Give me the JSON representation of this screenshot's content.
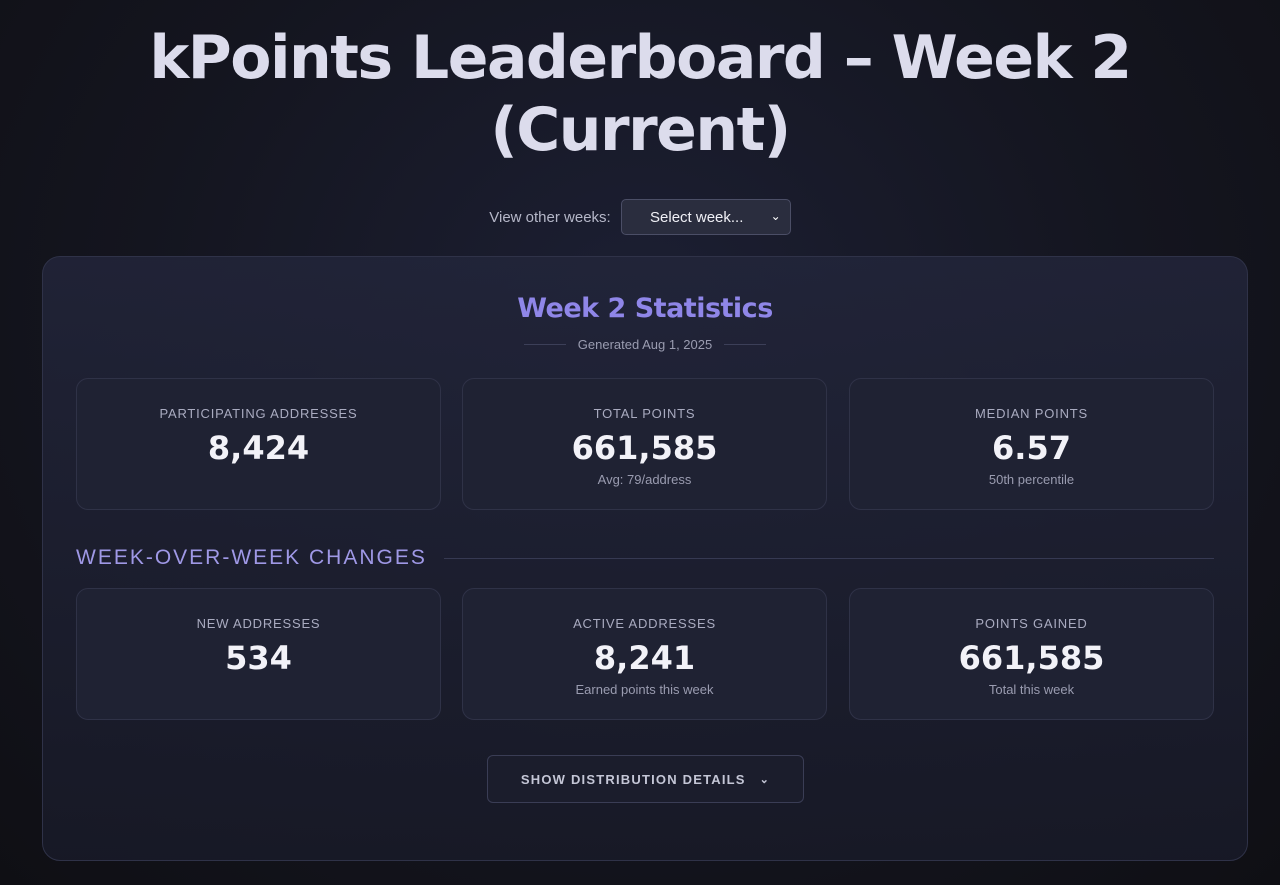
{
  "header": {
    "title_line1": "kPoints Leaderboard – Week 2",
    "title_line2": "(Current)"
  },
  "week_selector": {
    "label": "View other weeks:",
    "selected": "Select week..."
  },
  "stats": {
    "title": "Week 2 Statistics",
    "generated": "Generated Aug 1, 2025",
    "cards": [
      {
        "label": "PARTICIPATING ADDRESSES",
        "value": "8,424",
        "sub": ""
      },
      {
        "label": "TOTAL POINTS",
        "value": "661,585",
        "sub": "Avg: 79/address"
      },
      {
        "label": "MEDIAN POINTS",
        "value": "6.57",
        "sub": "50th percentile"
      }
    ]
  },
  "changes": {
    "heading": "WEEK-OVER-WEEK CHANGES",
    "cards": [
      {
        "label": "NEW ADDRESSES",
        "value": "534",
        "sub": ""
      },
      {
        "label": "ACTIVE ADDRESSES",
        "value": "8,241",
        "sub": "Earned points this week"
      },
      {
        "label": "POINTS GAINED",
        "value": "661,585",
        "sub": "Total this week"
      }
    ]
  },
  "distribution_button": {
    "label": "SHOW DISTRIBUTION DETAILS"
  },
  "icons": {
    "select_chevron": "chevron-down-icon",
    "button_chevron": "chevron-down-icon"
  },
  "colors": {
    "accent": "#8f86e8",
    "background": "#14151f",
    "card_background": "#1f2233"
  }
}
